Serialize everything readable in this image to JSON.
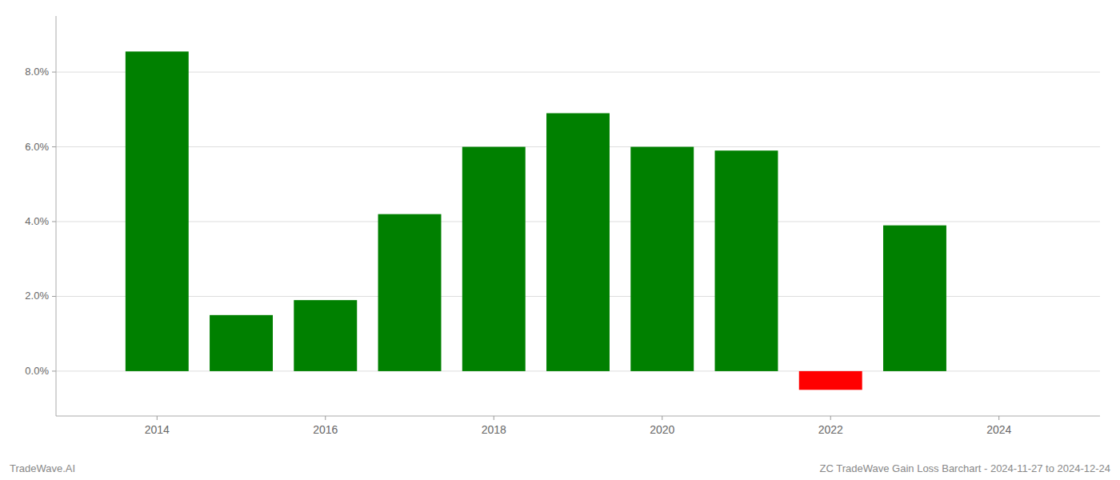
{
  "chart_data": {
    "type": "bar",
    "title": "ZC TradeWave Gain Loss Barchart - 2024-11-27 to 2024-12-24",
    "annotations": [
      "TradeWave.AI"
    ],
    "x": [
      2014,
      2015,
      2016,
      2017,
      2018,
      2019,
      2020,
      2021,
      2022,
      2023
    ],
    "values": [
      0.0855,
      0.015,
      0.019,
      0.042,
      0.06,
      0.069,
      0.06,
      0.059,
      -0.005,
      0.039
    ],
    "colors": [
      "#008000",
      "#008000",
      "#008000",
      "#008000",
      "#008000",
      "#008000",
      "#008000",
      "#008000",
      "#ff0000",
      "#008000"
    ],
    "xlim": [
      2012.8,
      2025.2
    ],
    "xticks": [
      2014,
      2016,
      2018,
      2020,
      2022,
      2024
    ],
    "ylim": [
      -0.012,
      0.095
    ],
    "yticks": [
      {
        "value": 0.0,
        "label": "0.0%"
      },
      {
        "value": 0.02,
        "label": "2.0%"
      },
      {
        "value": 0.04,
        "label": "4.0%"
      },
      {
        "value": 0.06,
        "label": "6.0%"
      },
      {
        "value": 0.08,
        "label": "8.0%"
      }
    ],
    "grid": true
  }
}
